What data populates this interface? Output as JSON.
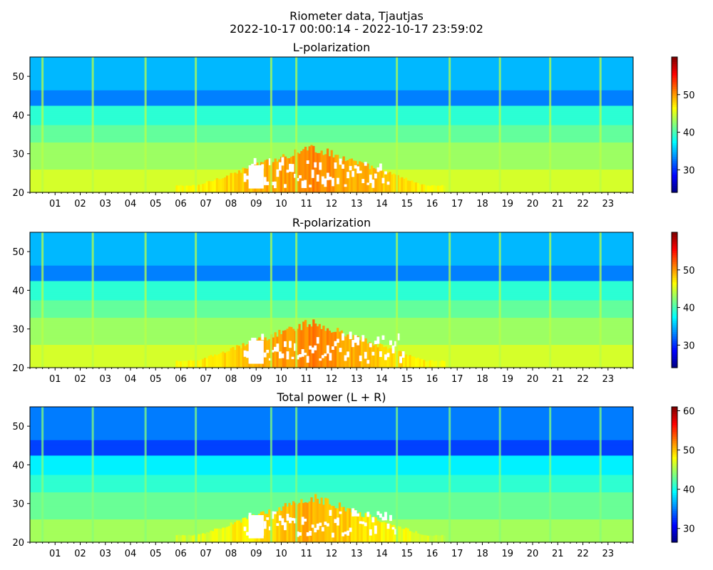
{
  "figure": {
    "title_line1": "Riometer data, Tjautjas",
    "title_line2": "2022-10-17 00:00:14 - 2022-10-17 23:59:02"
  },
  "chart_data": [
    {
      "type": "heatmap",
      "title": "L-polarization",
      "xlabel": "",
      "ylabel": "",
      "x_range_hours": [
        0,
        24
      ],
      "xtick_labels": [
        "01",
        "02",
        "03",
        "04",
        "05",
        "06",
        "07",
        "08",
        "09",
        "10",
        "11",
        "12",
        "13",
        "14",
        "15",
        "16",
        "17",
        "18",
        "19",
        "20",
        "21",
        "22",
        "23"
      ],
      "ylim": [
        20,
        55
      ],
      "yticks": [
        20,
        30,
        40,
        50
      ],
      "colorbar": {
        "colormap": "jet",
        "range": [
          24,
          60
        ],
        "ticks": [
          30,
          40,
          50
        ]
      },
      "vertical_interference_lines_hours": [
        0.5,
        2.5,
        4.6,
        6.6,
        9.6,
        10.6,
        14.6,
        16.7,
        18.7,
        20.7,
        22.7
      ],
      "saturated_region": {
        "hours": [
          8.5,
          14.2
        ],
        "y": [
          21,
          29
        ]
      },
      "enhanced_region": {
        "hours": [
          5.8,
          16.5
        ],
        "y": [
          20,
          33
        ]
      }
    },
    {
      "type": "heatmap",
      "title": "R-polarization",
      "xlabel": "",
      "ylabel": "",
      "x_range_hours": [
        0,
        24
      ],
      "xtick_labels": [
        "01",
        "02",
        "03",
        "04",
        "05",
        "06",
        "07",
        "08",
        "09",
        "10",
        "11",
        "12",
        "13",
        "14",
        "15",
        "16",
        "17",
        "18",
        "19",
        "20",
        "21",
        "22",
        "23"
      ],
      "ylim": [
        20,
        55
      ],
      "yticks": [
        20,
        30,
        40,
        50
      ],
      "colorbar": {
        "colormap": "jet",
        "range": [
          24,
          60
        ],
        "ticks": [
          30,
          40,
          50
        ]
      },
      "vertical_interference_lines_hours": [
        0.5,
        2.5,
        4.6,
        6.6,
        9.6,
        10.6,
        14.6,
        16.7,
        18.7,
        20.7,
        22.7
      ],
      "saturated_region": {
        "hours": [
          8.5,
          14.8
        ],
        "y": [
          21,
          29
        ]
      },
      "enhanced_region": {
        "hours": [
          5.8,
          16.5
        ],
        "y": [
          20,
          33
        ]
      }
    },
    {
      "type": "heatmap",
      "title": "Total power (L + R)",
      "xlabel": "",
      "ylabel": "",
      "x_range_hours": [
        0,
        24
      ],
      "xtick_labels": [
        "01",
        "02",
        "03",
        "04",
        "05",
        "06",
        "07",
        "08",
        "09",
        "10",
        "11",
        "12",
        "13",
        "14",
        "15",
        "16",
        "17",
        "18",
        "19",
        "20",
        "21",
        "22",
        "23"
      ],
      "ylim": [
        20,
        55
      ],
      "yticks": [
        20,
        30,
        40,
        50
      ],
      "colorbar": {
        "colormap": "jet",
        "range": [
          26.5,
          61
        ],
        "ticks": [
          30,
          40,
          50,
          60
        ]
      },
      "vertical_interference_lines_hours": [
        0.5,
        2.5,
        4.6,
        6.6,
        9.6,
        10.6,
        14.6,
        16.7,
        18.7,
        20.7,
        22.7
      ],
      "saturated_region": {
        "hours": [
          8.5,
          14.5
        ],
        "y": [
          21,
          29
        ]
      },
      "enhanced_region": {
        "hours": [
          5.8,
          16.5
        ],
        "y": [
          20,
          33
        ]
      }
    }
  ]
}
